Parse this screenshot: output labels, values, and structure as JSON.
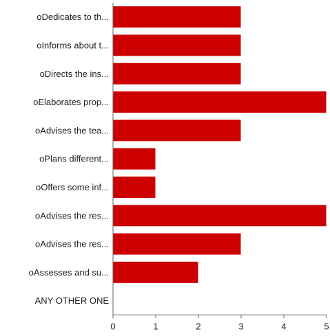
{
  "chart_data": {
    "type": "bar",
    "orientation": "horizontal",
    "title": "",
    "xlabel": "",
    "ylabel": "",
    "categories": [
      "oDedicates to th...",
      "oInforms about t...",
      "oDirects the ins...",
      "oElaborates prop...",
      "oAdvises the tea...",
      "oPlans different...",
      "oOffers some inf...",
      "oAdvises the res...",
      "oAdvises the res...",
      "oAssesses and su...",
      "ANY OTHER ONE"
    ],
    "values": [
      3,
      3,
      3,
      5,
      3,
      1,
      1,
      5,
      3,
      2,
      0
    ],
    "xlim": [
      0,
      5
    ],
    "xticks": [
      "0",
      "1",
      "2",
      "3",
      "4",
      "5"
    ],
    "grid": false,
    "legend": "none",
    "bar_color": "#cc0000",
    "bar_edge_color": "#ffffff",
    "axis_color": "#666666"
  }
}
